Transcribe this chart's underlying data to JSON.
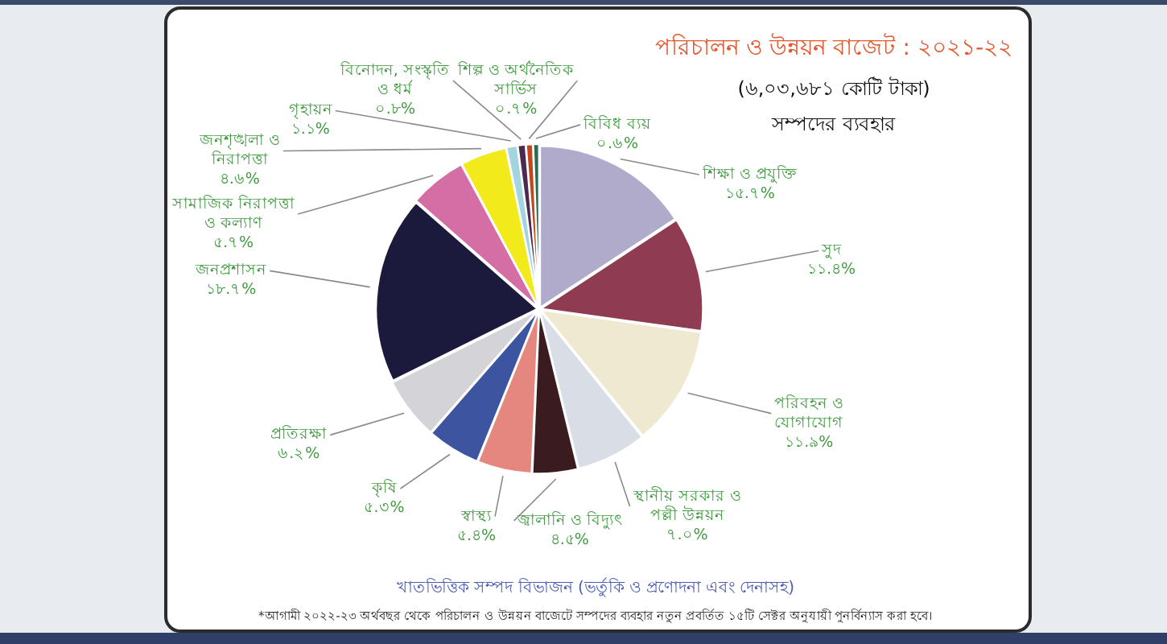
{
  "chart_data": {
    "type": "pie",
    "title": "পরিচালন ও উন্নয়ন বাজেট : ২০২১-২২",
    "subtitle": "(৬,০৩,৬৮১ কোটি টাকা)",
    "annotations": [
      "সম্পদের ব্যবহার",
      "খাতভিত্তিক সম্পদ বিভাজন (ভর্তুকি ও প্রণোদনা এবং দেনাসহ)",
      "*আগামী ২০২২-২৩ অর্থবছর থেকে পরিচালন ও উন্নয়ন বাজেটে সম্পদের ব্যবহার নতুন প্রবর্তিত ১৫টি সেক্টর অনুযায়ী পুনর্বিন্যাস করা হবে।"
    ],
    "categories": [
      "শিক্ষা ও প্রযুক্তি",
      "সুদ",
      "পরিবহন ও যোগাযোগ",
      "স্থানীয় সরকার ও পল্লী উন্নয়ন",
      "জ্বালানি ও বিদ্যুৎ",
      "স্বাস্থ্য",
      "কৃষি",
      "প্রতিরক্ষা",
      "জনপ্রশাসন",
      "সামাজিক নিরাপত্তা ও কল্যাণ",
      "জনশৃঙ্খলা ও নিরাপত্তা",
      "গৃহায়ন",
      "বিনোদন, সংস্কৃতি ও ধর্ম",
      "শিল্প ও অর্থনৈতিক সার্ভিস",
      "বিবিধ ব্যয়"
    ],
    "values": [
      15.7,
      11.4,
      11.9,
      7.0,
      4.5,
      5.4,
      5.3,
      6.2,
      18.7,
      5.7,
      4.6,
      1.1,
      0.8,
      0.7,
      0.6
    ],
    "value_labels": [
      "১৫.৭%",
      "১১.৪%",
      "১১.৯%",
      "৭.০%",
      "৪.৫%",
      "৫.৪%",
      "৫.৩%",
      "৬.২%",
      "১৮.৭%",
      "৫.৭%",
      "৪.৬%",
      "১.১%",
      "০.৮%",
      "০.৭%",
      "০.৬%"
    ],
    "colors": [
      "#b0aacb",
      "#8f3b52",
      "#efe9d2",
      "#d9dee6",
      "#3a1c20",
      "#e5877e",
      "#3d55a0",
      "#d4d4d8",
      "#1c1a3c",
      "#d46ea4",
      "#f2ea1a",
      "#a3d5e0",
      "#4b2a52",
      "#c4461c",
      "#2c6b52"
    ]
  }
}
